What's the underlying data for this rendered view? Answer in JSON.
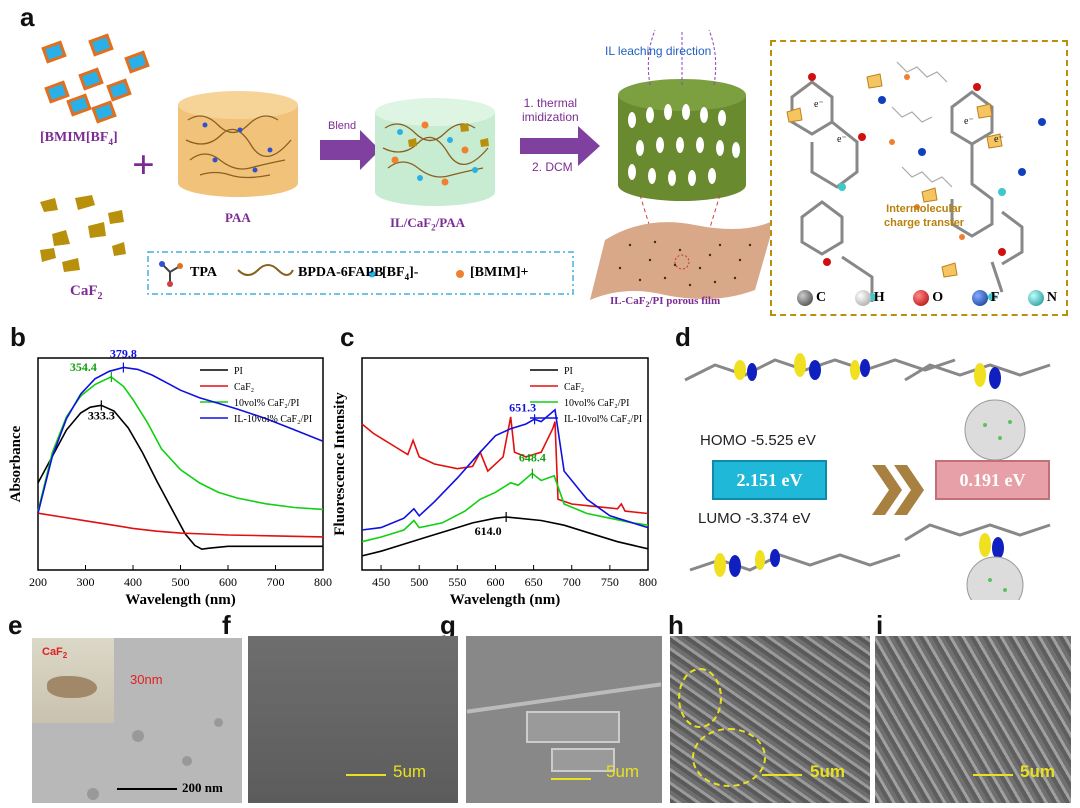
{
  "panel_labels": {
    "a": "a",
    "b": "b",
    "c": "c",
    "d": "d",
    "e": "e",
    "f": "f",
    "g": "g",
    "h": "h",
    "i": "i"
  },
  "panel_a": {
    "il_label": "[BMIM[BF",
    "il_sub": "4",
    "il_end": "]",
    "caf2": "CaF",
    "caf2_sub": "2",
    "paa": "PAA",
    "blend": "Blend",
    "il_caf2_paa": "IL/CaF",
    "il_caf2_paa_sub": "2",
    "il_caf2_paa_end": "/PAA",
    "step1": "1. thermal",
    "step1b": "imidization",
    "step2": "2. DCM",
    "leaching": "IL leaching direction",
    "porous": "IL-CaF",
    "porous_sub": "2",
    "porous_end": "/PI porous film",
    "legend_tpa": "TPA",
    "legend_bpda": "BPDA-6FAPB",
    "legend_bf4": "[BF",
    "legend_bf4_sub": "4",
    "legend_bf4_end": "]-",
    "legend_bmim": "[BMIM]+",
    "ict1": "Intermolecular",
    "ict2": "charge transfer",
    "electron": "e⁻",
    "atoms": [
      "C",
      "H",
      "O",
      "F",
      "N"
    ],
    "atom_colors": [
      "#555555",
      "#e0e0e0",
      "#d01010",
      "#1040c0",
      "#40c8c8"
    ]
  },
  "panel_d": {
    "homo": "HOMO  -5.525 eV",
    "lumo": "LUMO  -3.374 eV",
    "gap1": "2.151 eV",
    "gap2": "0.191 eV"
  },
  "panel_e": {
    "caf2": "CaF",
    "caf2_sub": "2",
    "size": "30nm",
    "scale": "200 nm"
  },
  "scales": {
    "f": "5um",
    "g": "5um",
    "h": "5um",
    "i": "5um"
  },
  "chart_data": [
    {
      "type": "line",
      "xlabel": "Wavelength (nm)",
      "ylabel": "Absorbance",
      "xlim": [
        200,
        800
      ],
      "xticks": [
        200,
        300,
        400,
        500,
        600,
        700,
        800
      ],
      "legend": "top-right",
      "series": [
        {
          "name": "PI",
          "color": "#000000",
          "x": [
            200,
            230,
            260,
            290,
            310,
            333,
            360,
            390,
            420,
            450,
            480,
            510,
            530,
            545,
            560,
            600,
            650,
            700,
            750,
            800
          ],
          "y": [
            0.46,
            0.6,
            0.74,
            0.83,
            0.86,
            0.87,
            0.84,
            0.75,
            0.62,
            0.47,
            0.33,
            0.19,
            0.13,
            0.11,
            0.115,
            0.125,
            0.125,
            0.125,
            0.125,
            0.125
          ]
        },
        {
          "name": "CaF₂",
          "color": "#e01010",
          "x": [
            200,
            250,
            300,
            350,
            400,
            450,
            500,
            550,
            600,
            700,
            800
          ],
          "y": [
            0.3,
            0.28,
            0.26,
            0.24,
            0.22,
            0.205,
            0.195,
            0.19,
            0.185,
            0.18,
            0.175
          ]
        },
        {
          "name": "10vol% CaF₂/PI",
          "color": "#10d010",
          "x": [
            200,
            230,
            260,
            290,
            320,
            354,
            380,
            400,
            430,
            460,
            500,
            540,
            580,
            620,
            680,
            740,
            800
          ],
          "y": [
            0.31,
            0.62,
            0.81,
            0.92,
            0.98,
            1.02,
            0.97,
            0.9,
            0.78,
            0.64,
            0.53,
            0.46,
            0.41,
            0.38,
            0.35,
            0.33,
            0.32
          ]
        },
        {
          "name": "IL-10vol% CaF₂/PI",
          "color": "#1010e0",
          "x": [
            200,
            230,
            260,
            290,
            320,
            350,
            380,
            410,
            440,
            470,
            500,
            540,
            580,
            620,
            680,
            740,
            800
          ],
          "y": [
            0.3,
            0.6,
            0.8,
            0.93,
            1.01,
            1.05,
            1.07,
            1.06,
            1.03,
            0.99,
            0.95,
            0.91,
            0.88,
            0.85,
            0.8,
            0.74,
            0.68
          ]
        }
      ],
      "annotations": [
        {
          "text": "379.8",
          "x": 379.8,
          "color": "#1010e0"
        },
        {
          "text": "354.4",
          "x": 354.4,
          "color": "#10a010"
        },
        {
          "text": "333.3",
          "x": 333.3,
          "color": "#000000"
        }
      ]
    },
    {
      "type": "line",
      "xlabel": "Wavelength (nm)",
      "ylabel": "Fluorescence Intensity",
      "xlim": [
        425,
        800
      ],
      "xticks": [
        450,
        500,
        550,
        600,
        650,
        700,
        750,
        800
      ],
      "legend": "top-right",
      "series": [
        {
          "name": "PI",
          "color": "#000000",
          "x": [
            425,
            450,
            480,
            510,
            540,
            570,
            600,
            614,
            630,
            660,
            690,
            720,
            760,
            800
          ],
          "y": [
            0.06,
            0.08,
            0.11,
            0.14,
            0.17,
            0.2,
            0.22,
            0.225,
            0.22,
            0.21,
            0.19,
            0.16,
            0.12,
            0.09
          ]
        },
        {
          "name": "CaF₂",
          "color": "#e01010",
          "x": [
            425,
            440,
            470,
            485,
            492,
            500,
            520,
            550,
            570,
            580,
            590,
            610,
            620,
            625,
            640,
            660,
            675,
            678,
            682,
            700,
            730,
            760,
            765,
            770,
            800
          ],
          "y": [
            0.62,
            0.58,
            0.52,
            0.49,
            0.55,
            0.48,
            0.45,
            0.43,
            0.44,
            0.5,
            0.42,
            0.48,
            0.65,
            0.5,
            0.48,
            0.5,
            0.6,
            0.63,
            0.3,
            0.28,
            0.27,
            0.26,
            0.28,
            0.25,
            0.24
          ]
        },
        {
          "name": "10vol% CaF₂/PI",
          "color": "#10d010",
          "x": [
            425,
            450,
            480,
            493,
            500,
            530,
            560,
            580,
            600,
            620,
            630,
            648,
            660,
            677,
            690,
            720,
            750,
            780,
            800
          ],
          "y": [
            0.12,
            0.14,
            0.17,
            0.21,
            0.18,
            0.2,
            0.25,
            0.3,
            0.33,
            0.37,
            0.36,
            0.41,
            0.38,
            0.4,
            0.28,
            0.24,
            0.22,
            0.2,
            0.19
          ]
        },
        {
          "name": "IL-10vol% CaF₂/PI",
          "color": "#1010e0",
          "x": [
            425,
            450,
            480,
            493,
            500,
            520,
            550,
            580,
            600,
            620,
            640,
            651,
            660,
            678,
            690,
            720,
            750,
            760,
            780,
            800
          ],
          "y": [
            0.17,
            0.18,
            0.22,
            0.26,
            0.23,
            0.29,
            0.39,
            0.5,
            0.57,
            0.6,
            0.62,
            0.64,
            0.63,
            0.68,
            0.42,
            0.3,
            0.23,
            0.22,
            0.2,
            0.18
          ]
        }
      ],
      "annotations": [
        {
          "text": "651.3",
          "x": 651.3,
          "color": "#1010e0"
        },
        {
          "text": "648.4",
          "x": 648.4,
          "color": "#10a010"
        },
        {
          "text": "614.0",
          "x": 614.0,
          "color": "#000000"
        }
      ]
    }
  ]
}
